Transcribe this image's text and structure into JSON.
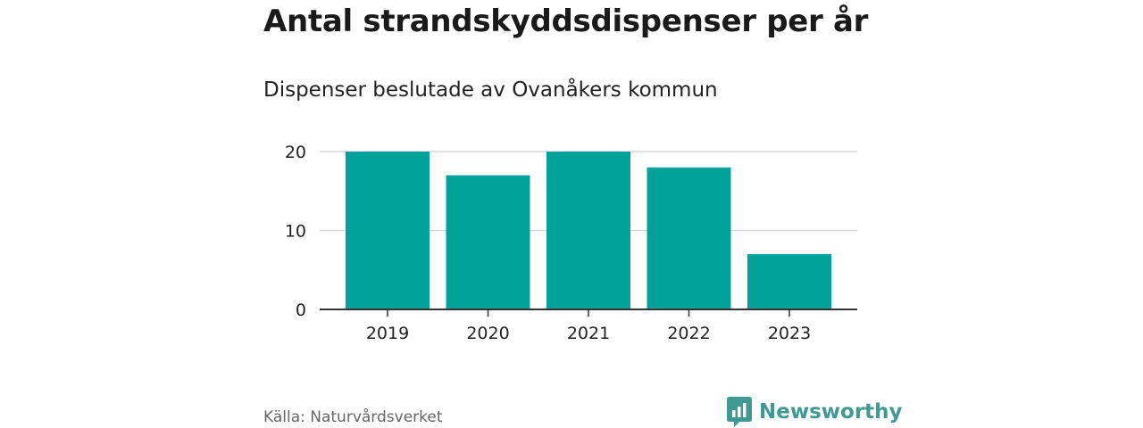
{
  "chart_data": {
    "type": "bar",
    "title": "Antal strandskyddsdispenser per år",
    "subtitle": "Dispenser beslutade av Ovanåkers kommun",
    "categories": [
      "2019",
      "2020",
      "2021",
      "2022",
      "2023"
    ],
    "values": [
      20,
      17,
      20,
      18,
      7
    ],
    "xlabel": "",
    "ylabel": "",
    "ylim": [
      0,
      20
    ],
    "yticks": [
      0,
      10,
      20
    ],
    "grid": true,
    "bar_color": "#00a29a"
  },
  "footer": {
    "source": "Källa: Naturvårdsverket",
    "brand": "Newsworthy",
    "brand_icon": "bar-chart-speech-bubble-icon",
    "brand_color": "#3f9a91"
  }
}
